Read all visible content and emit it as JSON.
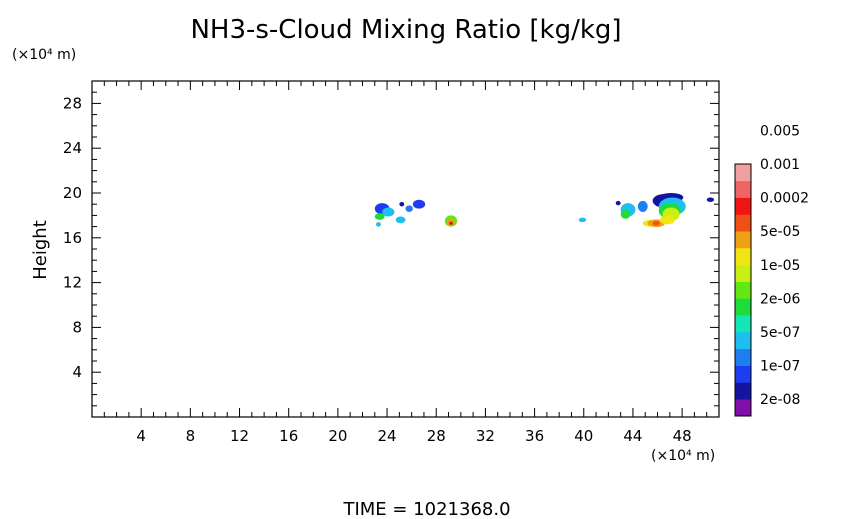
{
  "chart_data": {
    "type": "heatmap",
    "title": "NH3-s-Cloud Mixing Ratio [kg/kg]",
    "ylabel": "Height",
    "y_unit": "(×10⁴ m)",
    "x_unit": "(×10⁴ m)",
    "xlim": [
      0,
      51
    ],
    "ylim": [
      0,
      30
    ],
    "x_ticks": [
      {
        "value": 4,
        "label": "4"
      },
      {
        "value": 8,
        "label": "8"
      },
      {
        "value": 12,
        "label": "12"
      },
      {
        "value": 16,
        "label": "16"
      },
      {
        "value": 20,
        "label": "20"
      },
      {
        "value": 24,
        "label": "24"
      },
      {
        "value": 28,
        "label": "28"
      },
      {
        "value": 32,
        "label": "32"
      },
      {
        "value": 36,
        "label": "36"
      },
      {
        "value": 40,
        "label": "40"
      },
      {
        "value": 44,
        "label": "44"
      },
      {
        "value": 48,
        "label": "48"
      }
    ],
    "y_ticks": [
      {
        "value": 4,
        "label": "4"
      },
      {
        "value": 8,
        "label": "8"
      },
      {
        "value": 12,
        "label": "12"
      },
      {
        "value": 16,
        "label": "16"
      },
      {
        "value": 20,
        "label": "20"
      },
      {
        "value": 24,
        "label": "24"
      },
      {
        "value": 28,
        "label": "28"
      }
    ],
    "colorbar": {
      "colors": [
        "#7f0fa8",
        "#1414a0",
        "#1e3cf0",
        "#1e7ef0",
        "#1ebef0",
        "#14e6b4",
        "#1edc3c",
        "#64e614",
        "#c8f014",
        "#f0e614",
        "#f0a014",
        "#f05014",
        "#f01414",
        "#f06464",
        "#f0a0a0"
      ],
      "labels": [
        "2e-08",
        "1e-07",
        "5e-07",
        "2e-06",
        "1e-05",
        "5e-05",
        "0.0002",
        "0.001",
        "0.005"
      ]
    },
    "cloud_cells": [
      {
        "x": 23.6,
        "y": 18.6,
        "rx": 0.6,
        "ry": 0.5,
        "level": 2
      },
      {
        "x": 24.1,
        "y": 18.3,
        "rx": 0.5,
        "ry": 0.4,
        "level": 4
      },
      {
        "x": 23.4,
        "y": 17.9,
        "rx": 0.4,
        "ry": 0.3,
        "level": 6
      },
      {
        "x": 23.3,
        "y": 17.2,
        "rx": 0.2,
        "ry": 0.2,
        "level": 4
      },
      {
        "x": 25.1,
        "y": 17.6,
        "rx": 0.4,
        "ry": 0.3,
        "level": 4
      },
      {
        "x": 25.8,
        "y": 18.6,
        "rx": 0.3,
        "ry": 0.3,
        "level": 3
      },
      {
        "x": 26.6,
        "y": 19.0,
        "rx": 0.5,
        "ry": 0.4,
        "level": 2
      },
      {
        "x": 25.2,
        "y": 19.0,
        "rx": 0.2,
        "ry": 0.2,
        "level": 1
      },
      {
        "x": 29.2,
        "y": 17.5,
        "rx": 0.5,
        "ry": 0.5,
        "level": 7
      },
      {
        "x": 29.2,
        "y": 17.4,
        "rx": 0.3,
        "ry": 0.3,
        "level": 10
      },
      {
        "x": 29.2,
        "y": 17.3,
        "rx": 0.15,
        "ry": 0.15,
        "level": 12
      },
      {
        "x": 39.9,
        "y": 17.6,
        "rx": 0.3,
        "ry": 0.2,
        "level": 4
      },
      {
        "x": 42.8,
        "y": 19.1,
        "rx": 0.2,
        "ry": 0.2,
        "level": 1
      },
      {
        "x": 43.6,
        "y": 18.5,
        "rx": 0.6,
        "ry": 0.6,
        "level": 4
      },
      {
        "x": 43.4,
        "y": 18.1,
        "rx": 0.4,
        "ry": 0.4,
        "level": 6
      },
      {
        "x": 44.8,
        "y": 18.8,
        "rx": 0.4,
        "ry": 0.5,
        "level": 3
      },
      {
        "x": 45.4,
        "y": 17.3,
        "rx": 0.6,
        "ry": 0.3,
        "level": 9
      },
      {
        "x": 45.9,
        "y": 17.3,
        "rx": 0.7,
        "ry": 0.35,
        "level": 10
      },
      {
        "x": 45.9,
        "y": 17.3,
        "rx": 0.3,
        "ry": 0.2,
        "level": 11
      },
      {
        "x": 46.5,
        "y": 19.3,
        "rx": 0.9,
        "ry": 0.6,
        "level": 1
      },
      {
        "x": 47.1,
        "y": 19.6,
        "rx": 1.0,
        "ry": 0.4,
        "level": 1
      },
      {
        "x": 47.2,
        "y": 18.8,
        "rx": 1.1,
        "ry": 0.8,
        "level": 4
      },
      {
        "x": 47.0,
        "y": 18.4,
        "rx": 0.9,
        "ry": 0.7,
        "level": 6
      },
      {
        "x": 47.1,
        "y": 18.1,
        "rx": 0.7,
        "ry": 0.6,
        "level": 8
      },
      {
        "x": 46.8,
        "y": 17.6,
        "rx": 0.6,
        "ry": 0.4,
        "level": 9
      },
      {
        "x": 50.3,
        "y": 19.4,
        "rx": 0.3,
        "ry": 0.2,
        "level": 1
      }
    ]
  },
  "time_label": "TIME = 1021368.0"
}
